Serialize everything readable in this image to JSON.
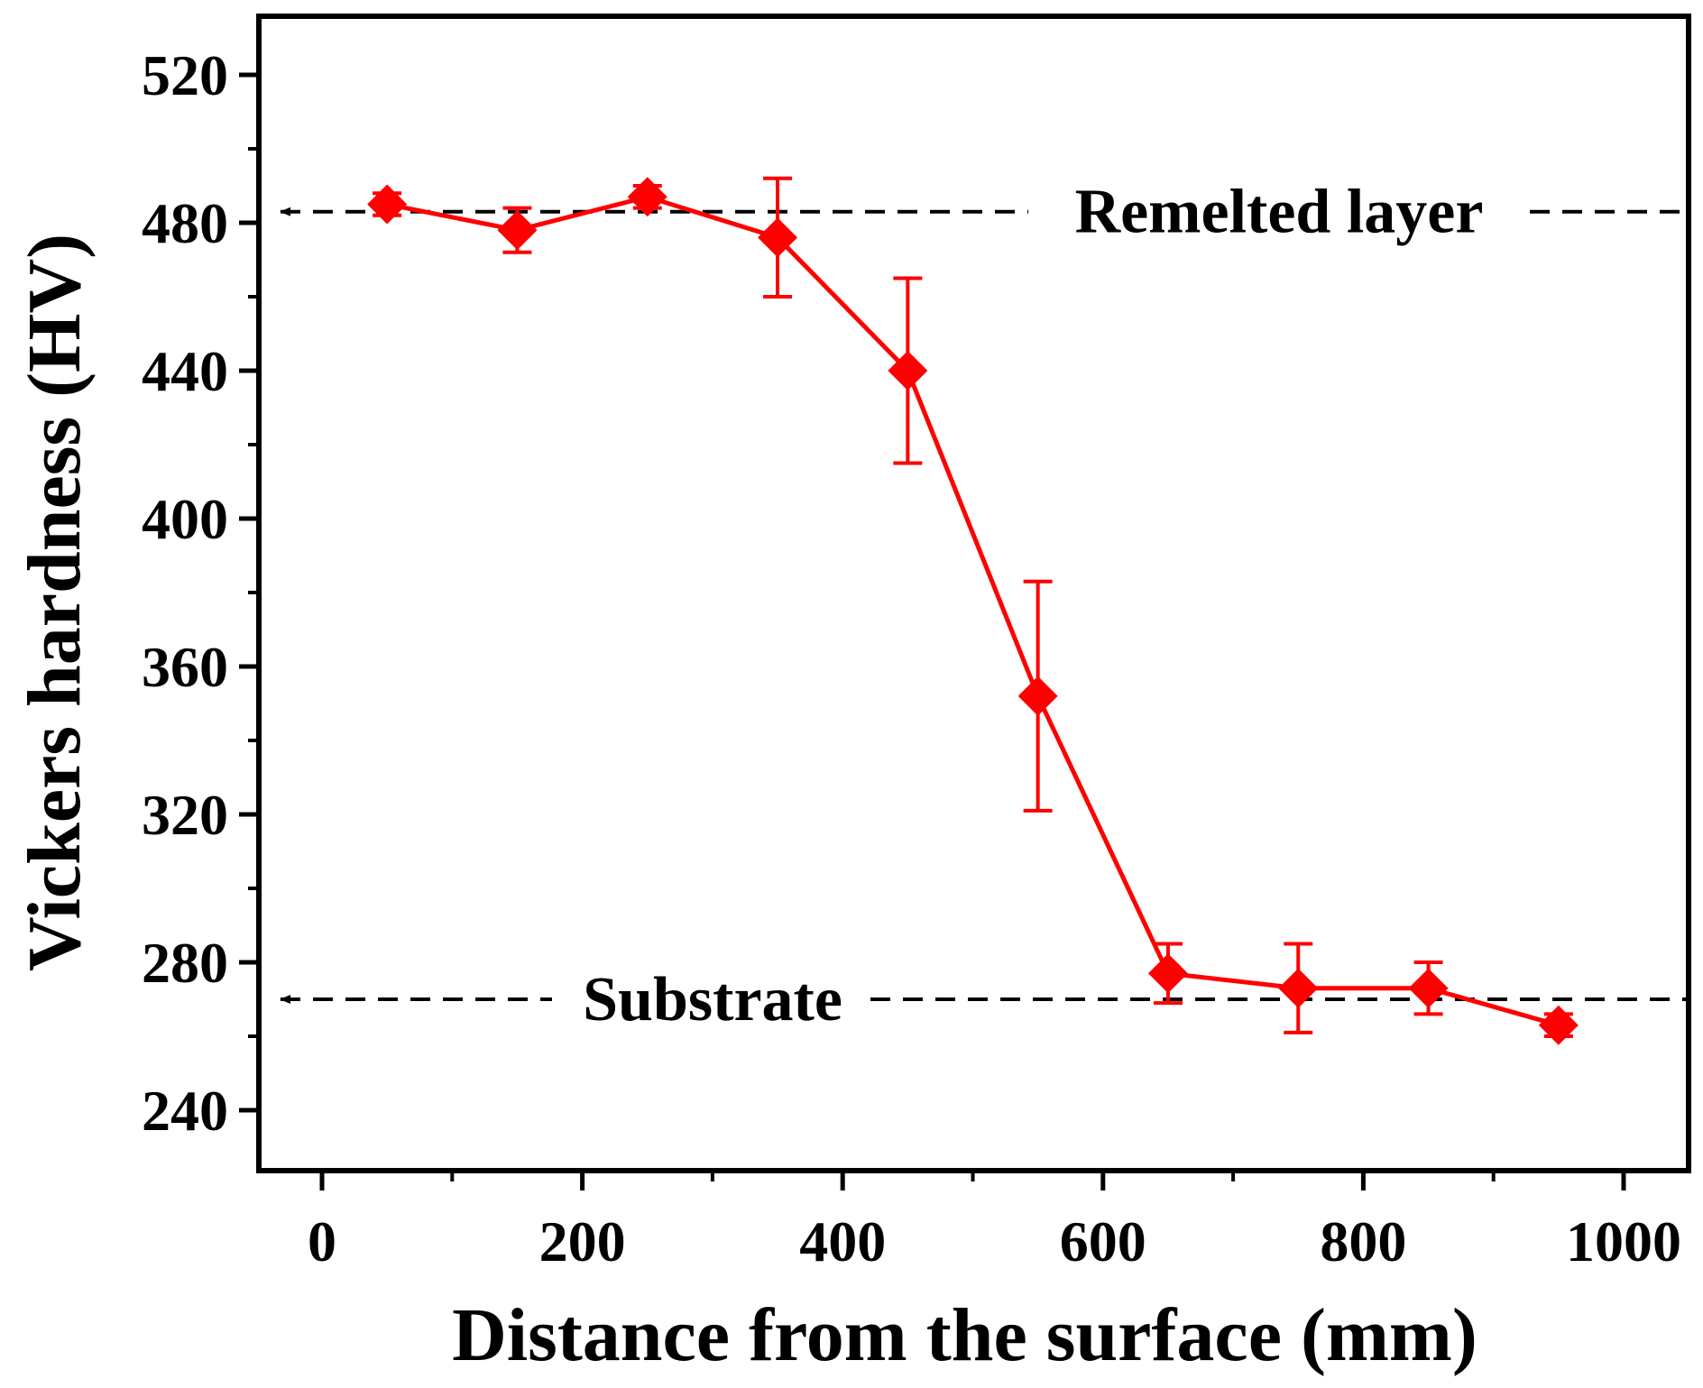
{
  "chart_data": {
    "type": "line",
    "title": "",
    "xlabel": "Distance from the surface (mm)",
    "ylabel": "Vickers hardness (HV)",
    "xlim": [
      -50,
      1050
    ],
    "ylim": [
      225,
      540
    ],
    "xticks": [
      0,
      200,
      400,
      600,
      800,
      1000
    ],
    "yticks": [
      240,
      280,
      320,
      360,
      400,
      440,
      480,
      520
    ],
    "series": [
      {
        "name": "Hardness",
        "color": "#ff0000",
        "marker": "diamond",
        "x": [
          50,
          150,
          250,
          350,
          450,
          550,
          650,
          750,
          850,
          950
        ],
        "y": [
          485,
          478,
          487,
          476,
          440,
          352,
          277,
          273,
          273,
          263
        ],
        "yerr_lower": [
          3,
          6,
          3,
          16,
          25,
          31,
          8,
          12,
          7,
          3
        ],
        "yerr_upper": [
          3,
          6,
          3,
          16,
          25,
          31,
          8,
          12,
          7,
          3
        ]
      }
    ],
    "reference_lines": [
      {
        "label": "Remelted layer",
        "y": 483,
        "style": "dashed",
        "arrow": "left"
      },
      {
        "label": "Substrate",
        "y": 270,
        "style": "dashed",
        "arrow": "left"
      }
    ],
    "grid": false,
    "legend": "none"
  }
}
